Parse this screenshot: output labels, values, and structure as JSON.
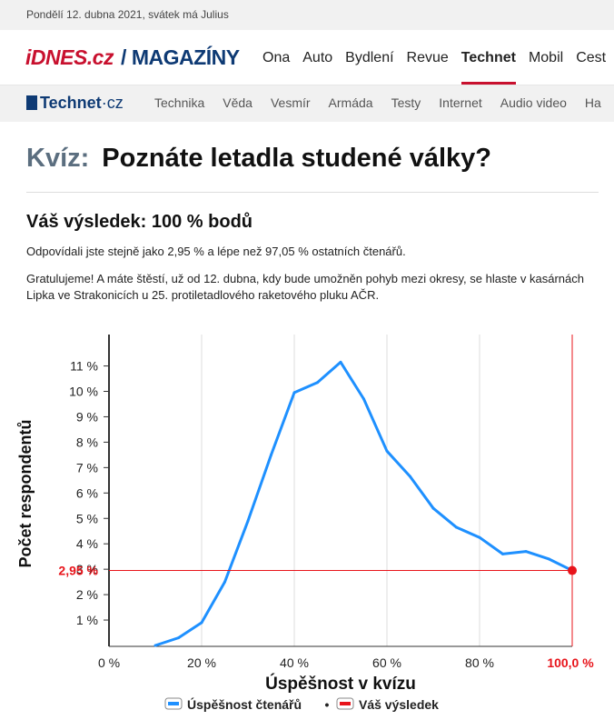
{
  "topbar": {
    "date": "Pondělí 12. dubna 2021, svátek má Julius"
  },
  "brand": {
    "logo": "iDNES.cz",
    "separator": "/",
    "section": "MAGAZÍNY"
  },
  "mainnav": [
    "Ona",
    "Auto",
    "Bydlení",
    "Revue",
    "Technet",
    "Mobil",
    "Cest"
  ],
  "mainnav_active": "Technet",
  "subbrand": {
    "logo_main": "Technet",
    "logo_suffix": "cz"
  },
  "subnav": [
    "Technika",
    "Věda",
    "Vesmír",
    "Armáda",
    "Testy",
    "Internet",
    "Audio video",
    "Ha"
  ],
  "quiz": {
    "label": "Kvíz:",
    "title": "Poznáte letadla studené války?",
    "result": "Váš výsledek: 100 % bodů",
    "summary": "Odpovídali jste stejně jako 2,95 % a lépe než 97,05 % ostatních čtenářů.",
    "message": "Gratulujeme! A máte štěstí, už od 12. dubna, kdy bude umožněn pohyb mezi okresy, se hlaste v kasárnách Lipka ve Strakonicích u 25. protiletadlového raketového pluku AČR."
  },
  "chart_data": {
    "type": "line",
    "xlabel": "Úspěšnost v kvízu",
    "ylabel": "Počet respondentů",
    "xlim": [
      0,
      100
    ],
    "ylim": [
      0,
      12
    ],
    "x_ticks": [
      "0 %",
      "20 %",
      "40 %",
      "60 %",
      "80 %",
      "100,0 %"
    ],
    "y_ticks": [
      "1 %",
      "2 %",
      "3 %",
      "4 %",
      "5 %",
      "6 %",
      "7 %",
      "8 %",
      "9 %",
      "10 %",
      "11 %"
    ],
    "grid": "vertical",
    "series": [
      {
        "name": "Úspěšnost čtenářů",
        "color": "#1e90ff",
        "x": [
          10,
          15,
          20,
          25,
          30,
          35,
          40,
          45,
          50,
          55,
          60,
          65,
          70,
          75,
          80,
          85,
          90,
          95,
          100
        ],
        "y": [
          0,
          0.3,
          0.9,
          2.5,
          4.9,
          7.5,
          9.95,
          10.35,
          11.15,
          9.7,
          7.65,
          6.65,
          5.4,
          4.65,
          4.25,
          3.6,
          3.7,
          3.4,
          2.95
        ]
      },
      {
        "name": "Váš výsledek",
        "color": "#e8141b",
        "x": 100,
        "y": 2.95,
        "y_label": "2,95 %",
        "x_label": "100,0 %"
      }
    ],
    "legend_position": "bottom",
    "legend_separator": "•"
  }
}
